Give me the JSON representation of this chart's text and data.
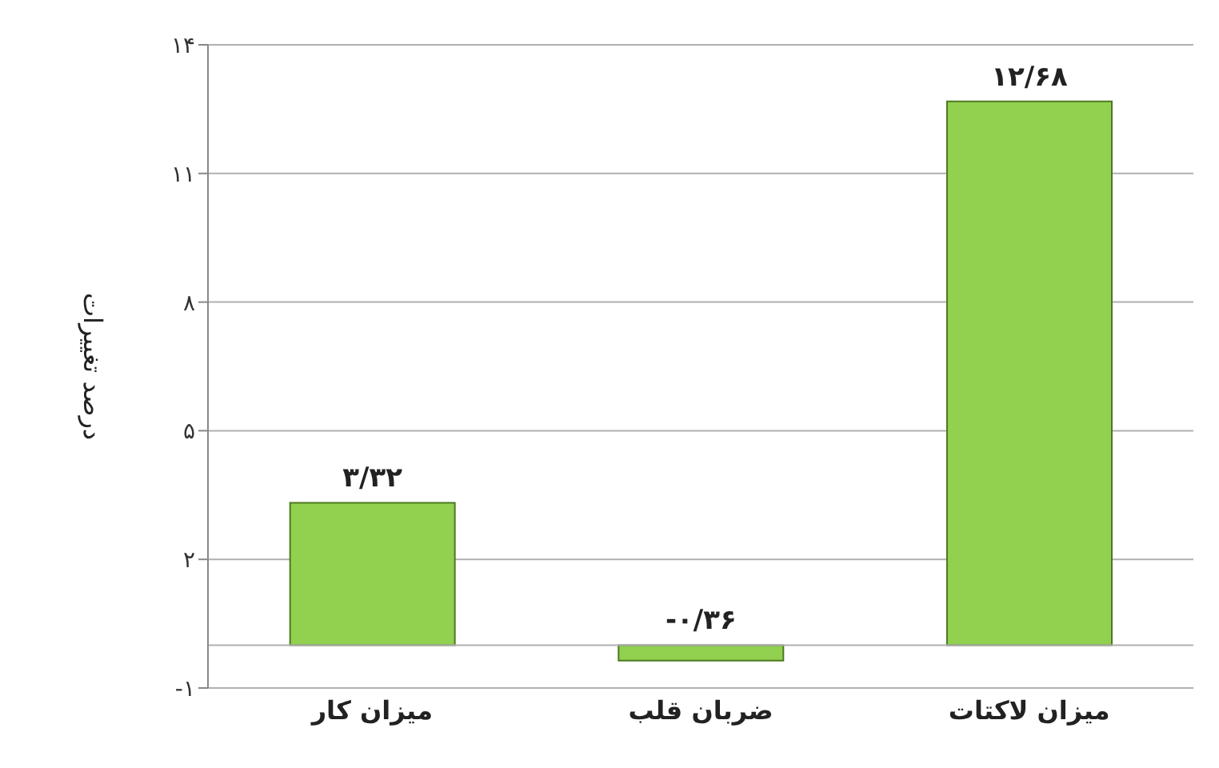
{
  "chart_data": {
    "type": "bar",
    "ylabel": "درصد تغییرات",
    "categories": [
      "میزان کار",
      "ضربان قلب",
      "میزان لاکتات"
    ],
    "values": [
      3.32,
      -0.36,
      12.68
    ],
    "value_labels": [
      "۳/۳۲",
      "-۰/۳۶",
      "۱۲/۶۸"
    ],
    "color": "#92d050",
    "ylim": [
      -1,
      14
    ],
    "yticks": [
      {
        "value": -1,
        "label": "-۱"
      },
      {
        "value": 2,
        "label": "۲"
      },
      {
        "value": 5,
        "label": "۵"
      },
      {
        "value": 8,
        "label": "۸"
      },
      {
        "value": 11,
        "label": "۱۱"
      },
      {
        "value": 14,
        "label": "۱۴"
      }
    ],
    "grid": "y"
  }
}
